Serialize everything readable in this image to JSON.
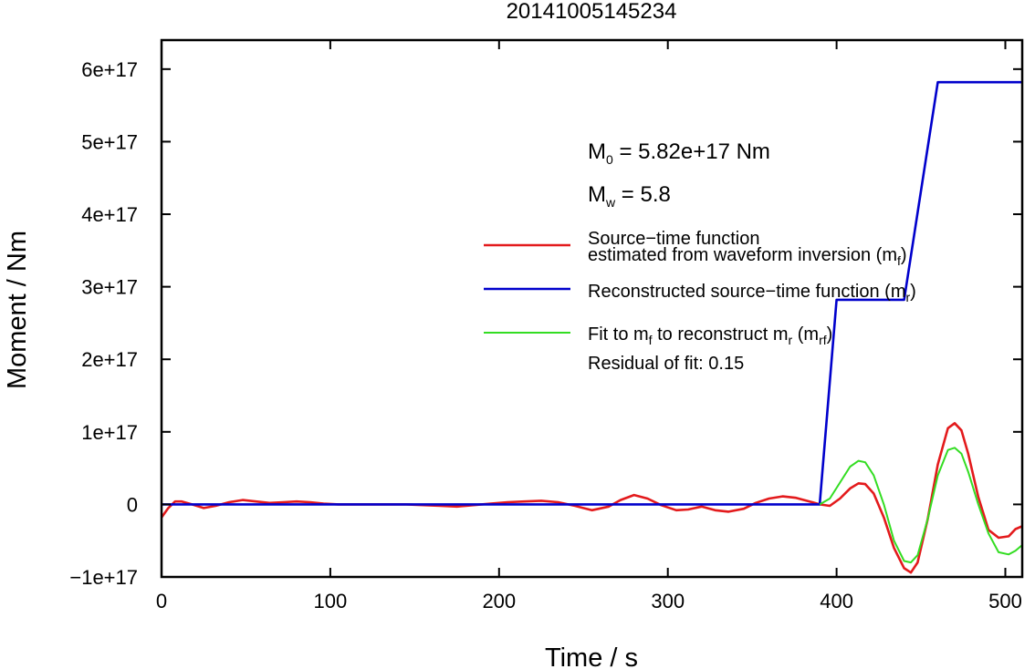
{
  "chart_data": {
    "type": "line",
    "title": "20141005145234",
    "xlabel": "Time / s",
    "ylabel": "Moment / Nm",
    "xlim": [
      0,
      510
    ],
    "ylim": [
      -1e+17,
      6.4e+17
    ],
    "x_ticks": [
      0,
      100,
      200,
      300,
      400,
      500
    ],
    "x_tick_labels": [
      "0",
      "100",
      "200",
      "300",
      "400",
      "500"
    ],
    "y_ticks": [
      -1e+17,
      0,
      1e+17,
      2e+17,
      3e+17,
      4e+17,
      5e+17,
      6e+17
    ],
    "y_tick_labels": [
      "−1e+17",
      "0",
      "1e+17",
      "2e+17",
      "3e+17",
      "4e+17",
      "5e+17",
      "6e+17"
    ],
    "grid": false,
    "legend_position": "right",
    "annotations": {
      "m0_prefix": "M",
      "m0_sub": "0",
      "m0_text": " = 5.82e+17 Nm",
      "mw_prefix": "M",
      "mw_sub": "w",
      "mw_text": " = 5.8",
      "residual": "Residual of fit: 0.15"
    },
    "legend": [
      {
        "color": "#e31a1c",
        "line1": "Source−time function",
        "line2_main": "estimated from waveform inversion (m",
        "line2_sub": "f",
        "line2_end": ")"
      },
      {
        "color": "#0000cc",
        "main": "Reconstructed source−time function (m",
        "sub": "r",
        "end": ")"
      },
      {
        "color": "#33dd22",
        "p1": "Fit to m",
        "s1": "f",
        "p2": " to reconstruct m",
        "s2": "r",
        "p3": " (m",
        "s3": "rf",
        "p4": ")"
      }
    ],
    "series": [
      {
        "name": "Source−time function estimated from waveform inversion (m_f)",
        "color": "#e31a1c",
        "x": [
          0,
          4,
          8,
          12,
          18,
          25,
          32,
          40,
          48,
          56,
          64,
          72,
          80,
          88,
          96,
          105,
          115,
          125,
          135,
          145,
          155,
          165,
          175,
          185,
          195,
          205,
          215,
          225,
          235,
          245,
          255,
          265,
          272,
          280,
          288,
          296,
          305,
          312,
          320,
          328,
          336,
          345,
          352,
          360,
          368,
          376,
          384,
          390,
          396,
          402,
          408,
          413,
          417,
          422,
          428,
          434,
          440,
          444,
          448,
          454,
          460,
          466,
          470,
          474,
          478,
          484,
          490,
          496,
          502,
          506,
          510
        ],
        "y": [
          -1.8e+16,
          -5000000000000000.0,
          4000000000000000.0,
          4000000000000000.0,
          0,
          -5000000000000000.0,
          -2000000000000000.0,
          3000000000000000.0,
          6000000000000000.0,
          4000000000000000.0,
          2000000000000000.0,
          3000000000000000.0,
          4000000000000000.0,
          3000000000000000.0,
          1000000000000000.0,
          0,
          0,
          0,
          0,
          0,
          -1000000000000000.0,
          -2000000000000000.0,
          -3000000000000000.0,
          -1000000000000000.0,
          1000000000000000.0,
          3000000000000000.0,
          4000000000000000.0,
          5000000000000000.0,
          3000000000000000.0,
          -2000000000000000.0,
          -8000000000000000.0,
          -3000000000000000.0,
          6000000000000000.0,
          1.3e+16,
          8000000000000000.0,
          -1000000000000000.0,
          -8000000000000000.0,
          -7000000000000000.0,
          -3000000000000000.0,
          -8000000000000000.0,
          -1e+16,
          -6000000000000000.0,
          2000000000000000.0,
          8000000000000000.0,
          1.1e+16,
          9000000000000000.0,
          4000000000000000.0,
          0,
          -2000000000000000.0,
          8000000000000000.0,
          2.2e+16,
          2.9e+16,
          2.8e+16,
          1.5e+16,
          -1.8e+16,
          -6e+16,
          -8.8e+16,
          -9.4e+16,
          -8e+16,
          -2e+16,
          5.5e+16,
          1.05e+17,
          1.12e+17,
          1.02e+17,
          7e+16,
          1e+16,
          -3.5e+16,
          -4.6e+16,
          -4.4e+16,
          -3.4e+16,
          -3e+16
        ]
      },
      {
        "name": "Reconstructed source−time function (m_r)",
        "color": "#0000cc",
        "x": [
          0,
          390,
          400,
          440,
          460,
          510
        ],
        "y": [
          0,
          0,
          2.82e+17,
          2.82e+17,
          5.82e+17,
          5.82e+17
        ]
      },
      {
        "name": "Fit to m_f to reconstruct m_r (m_rf)",
        "color": "#33dd22",
        "x": [
          390,
          396,
          402,
          408,
          413,
          417,
          422,
          428,
          434,
          440,
          444,
          448,
          454,
          460,
          466,
          470,
          474,
          478,
          484,
          490,
          496,
          502,
          506,
          510
        ],
        "y": [
          0,
          8000000000000000.0,
          3e+16,
          5.2e+16,
          6e+16,
          5.8e+16,
          4e+16,
          0,
          -5e+16,
          -7.8e+16,
          -8e+16,
          -7e+16,
          -2e+16,
          4e+16,
          7.5e+16,
          7.8e+16,
          7e+16,
          4.5e+16,
          0,
          -4e+16,
          -6.6e+16,
          -6.9e+16,
          -6.4e+16,
          -5.6e+16
        ]
      }
    ]
  }
}
